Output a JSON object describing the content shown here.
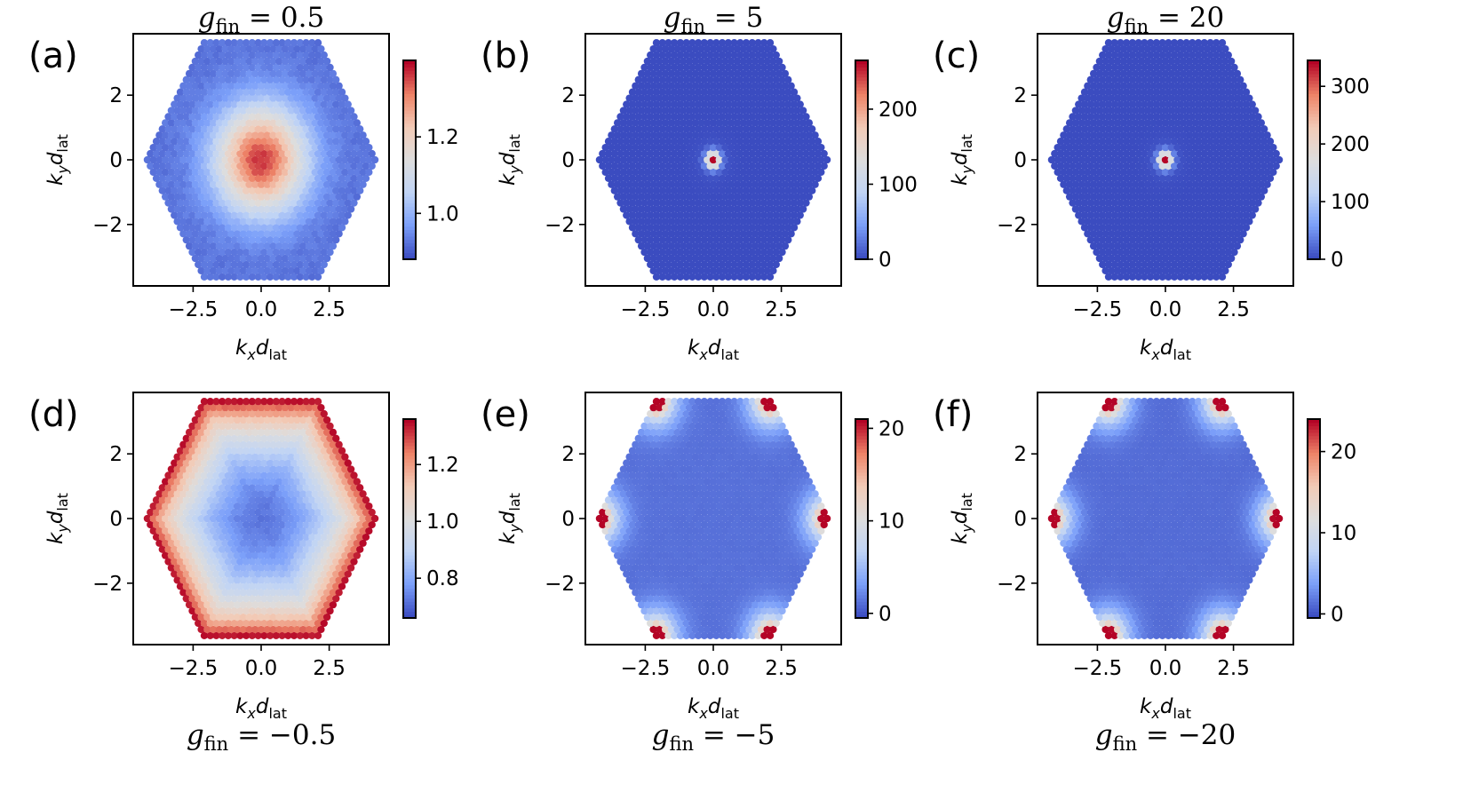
{
  "figure": {
    "x_axis_label": "k_x d_lat",
    "y_axis_label": "k_y d_lat",
    "xlim": [
      -4.7,
      4.7
    ],
    "ylim": [
      -3.9,
      3.9
    ],
    "x_ticks": [
      -2.5,
      0.0,
      2.5
    ],
    "x_tick_labels": [
      "−2.5",
      "0.0",
      "2.5"
    ],
    "y_ticks": [
      -2,
      0,
      2
    ],
    "y_tick_labels": [
      "−2",
      "0",
      "2"
    ],
    "colormap": "coolwarm",
    "colormap_stops": [
      "#3b4cc0",
      "#7b9ff9",
      "#c0d4f5",
      "#dddddd",
      "#f2cbb7",
      "#ee8468",
      "#b40426"
    ]
  },
  "chart_data": [
    {
      "type": "heatmap",
      "panel": "(a)",
      "title": "g_fin = 0.5",
      "title_position": "top",
      "pattern": "center_peak",
      "clim": [
        0.88,
        1.4
      ],
      "colorbar_ticks": [
        1.0,
        1.2
      ],
      "colorbar_tick_labels": [
        "1.0",
        "1.2"
      ],
      "xlabel": "k_x d_lat",
      "ylabel": "k_y d_lat"
    },
    {
      "type": "heatmap",
      "panel": "(b)",
      "title": "g_fin = 5",
      "title_position": "top",
      "pattern": "center_spike",
      "clim": [
        0,
        265
      ],
      "colorbar_ticks": [
        0,
        100,
        200
      ],
      "colorbar_tick_labels": [
        "0",
        "100",
        "200"
      ],
      "xlabel": "k_x d_lat",
      "ylabel": "k_y d_lat"
    },
    {
      "type": "heatmap",
      "panel": "(c)",
      "title": "g_fin = 20",
      "title_position": "top",
      "pattern": "center_spike",
      "clim": [
        0,
        345
      ],
      "colorbar_ticks": [
        0,
        100,
        200,
        300
      ],
      "colorbar_tick_labels": [
        "0",
        "100",
        "200",
        "300"
      ],
      "xlabel": "k_x d_lat",
      "ylabel": "k_y d_lat"
    },
    {
      "type": "heatmap",
      "panel": "(d)",
      "title": "g_fin = −0.5",
      "title_position": "bottom",
      "pattern": "edge_ring",
      "clim": [
        0.66,
        1.36
      ],
      "colorbar_ticks": [
        0.8,
        1.0,
        1.2
      ],
      "colorbar_tick_labels": [
        "0.8",
        "1.0",
        "1.2"
      ],
      "xlabel": "k_x d_lat",
      "ylabel": "k_y d_lat"
    },
    {
      "type": "heatmap",
      "panel": "(e)",
      "title": "g_fin = −5",
      "title_position": "bottom",
      "pattern": "corner_peaks",
      "clim": [
        -0.5,
        21
      ],
      "colorbar_ticks": [
        0,
        10,
        20
      ],
      "colorbar_tick_labels": [
        "0",
        "10",
        "20"
      ],
      "xlabel": "k_x d_lat",
      "ylabel": "k_y d_lat"
    },
    {
      "type": "heatmap",
      "panel": "(f)",
      "title": "g_fin = −20",
      "title_position": "bottom",
      "pattern": "corner_peaks",
      "clim": [
        -0.5,
        24
      ],
      "colorbar_ticks": [
        0,
        10,
        20
      ],
      "colorbar_tick_labels": [
        "0",
        "10",
        "20"
      ],
      "xlabel": "k_x d_lat",
      "ylabel": "k_y d_lat"
    }
  ]
}
